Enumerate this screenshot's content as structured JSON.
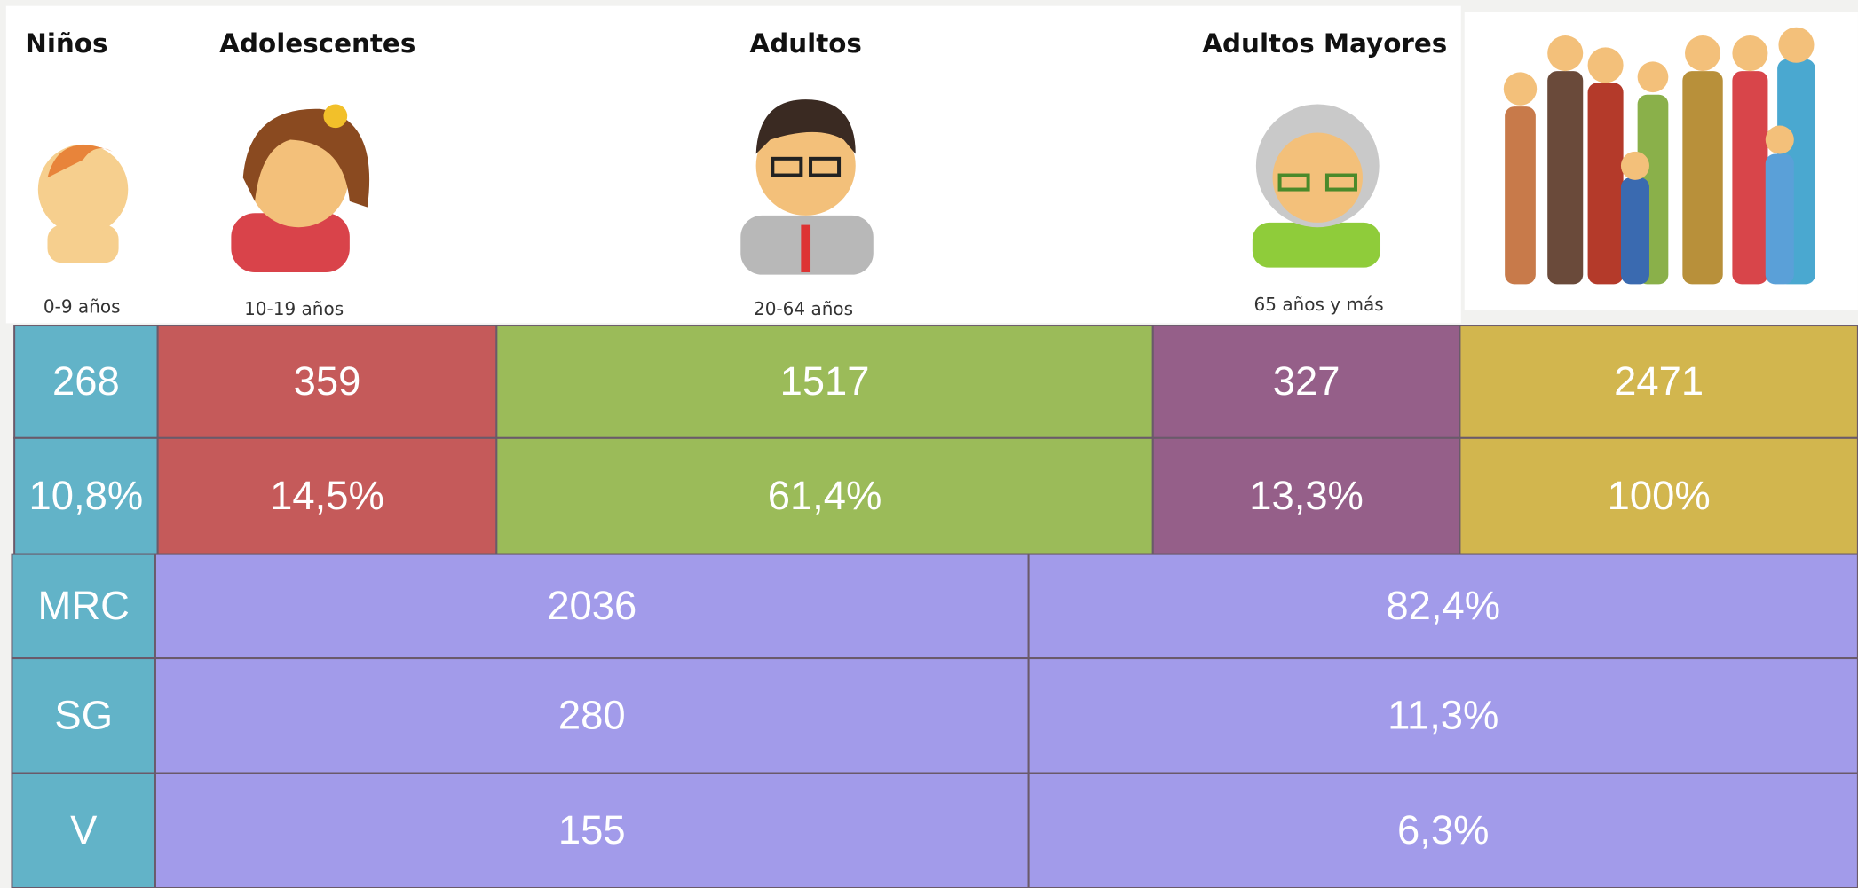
{
  "groups": [
    {
      "label": "Niños",
      "range": "0-9 años",
      "count": 268,
      "percent": "10,8%"
    },
    {
      "label": "Adolescentes",
      "range": "10-19 años",
      "count": 359,
      "percent": "14,5%"
    },
    {
      "label": "Adultos",
      "range": "20-64 años",
      "count": 1517,
      "percent": "61,4%"
    },
    {
      "label": "Adultos Mayores",
      "range": "65 años y más",
      "count": 327,
      "percent": "13,3%"
    }
  ],
  "total": {
    "count": 2471,
    "percent": "100%"
  },
  "rows": [
    {
      "label": "MRC",
      "count": 2036,
      "percent": "82,4%"
    },
    {
      "label": "SG",
      "count": 280,
      "percent": "11,3%"
    },
    {
      "label": "V",
      "count": 155,
      "percent": "6,3%"
    }
  ]
}
